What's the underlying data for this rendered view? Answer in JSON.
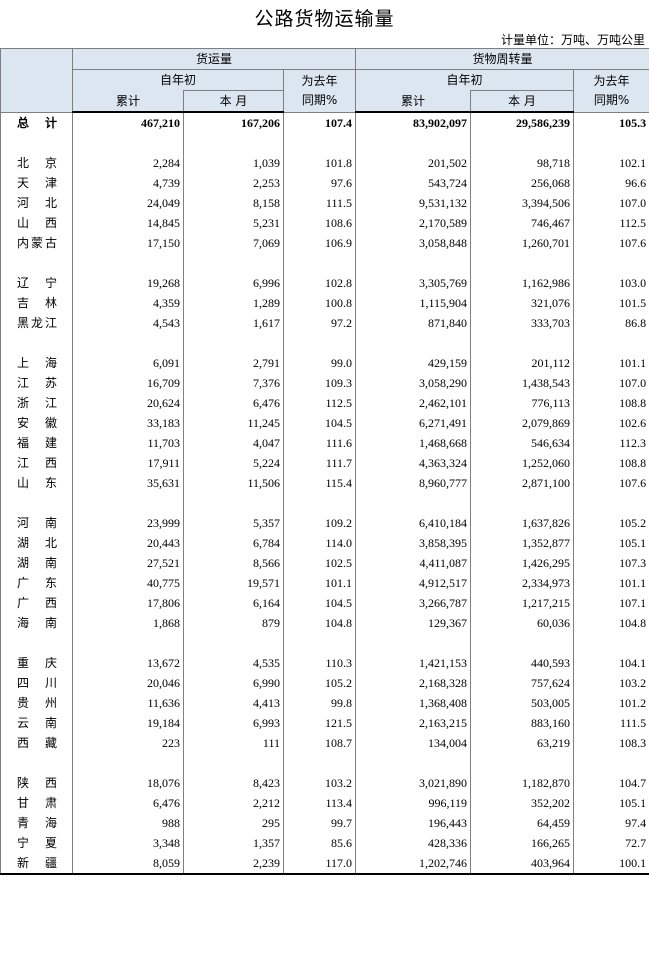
{
  "title": "公路货物运输量",
  "unit": "计量单位：万吨、万吨公里",
  "header": {
    "groups": [
      {
        "name": "货运量",
        "since_start": "自年初",
        "cumulative": "累计",
        "month": "本 月",
        "yoy": [
          "为去年",
          "同期%"
        ]
      },
      {
        "name": "货物周转量",
        "since_start": "自年初",
        "cumulative": "累计",
        "month": "本 月",
        "yoy": [
          "为去年",
          "同期%"
        ]
      }
    ]
  },
  "table": {
    "total": [
      "总 计",
      "467,210",
      "167,206",
      "107.4",
      "83,902,097",
      "29,586,239",
      "105.3"
    ],
    "groups": [
      [
        [
          "北 京",
          "2,284",
          "1,039",
          "101.8",
          "201,502",
          "98,718",
          "102.1"
        ],
        [
          "天 津",
          "4,739",
          "2,253",
          "97.6",
          "543,724",
          "256,068",
          "96.6"
        ],
        [
          "河 北",
          "24,049",
          "8,158",
          "111.5",
          "9,531,132",
          "3,394,506",
          "107.0"
        ],
        [
          "山 西",
          "14,845",
          "5,231",
          "108.6",
          "2,170,589",
          "746,467",
          "112.5"
        ],
        [
          "内蒙古",
          "17,150",
          "7,069",
          "106.9",
          "3,058,848",
          "1,260,701",
          "107.6"
        ]
      ],
      [
        [
          "辽 宁",
          "19,268",
          "6,996",
          "102.8",
          "3,305,769",
          "1,162,986",
          "103.0"
        ],
        [
          "吉 林",
          "4,359",
          "1,289",
          "100.8",
          "1,115,904",
          "321,076",
          "101.5"
        ],
        [
          "黑龙江",
          "4,543",
          "1,617",
          "97.2",
          "871,840",
          "333,703",
          "86.8"
        ]
      ],
      [
        [
          "上 海",
          "6,091",
          "2,791",
          "99.0",
          "429,159",
          "201,112",
          "101.1"
        ],
        [
          "江 苏",
          "16,709",
          "7,376",
          "109.3",
          "3,058,290",
          "1,438,543",
          "107.0"
        ],
        [
          "浙 江",
          "20,624",
          "6,476",
          "112.5",
          "2,462,101",
          "776,113",
          "108.8"
        ],
        [
          "安 徽",
          "33,183",
          "11,245",
          "104.5",
          "6,271,491",
          "2,079,869",
          "102.6"
        ],
        [
          "福 建",
          "11,703",
          "4,047",
          "111.6",
          "1,468,668",
          "546,634",
          "112.3"
        ],
        [
          "江 西",
          "17,911",
          "5,224",
          "111.7",
          "4,363,324",
          "1,252,060",
          "108.8"
        ],
        [
          "山 东",
          "35,631",
          "11,506",
          "115.4",
          "8,960,777",
          "2,871,100",
          "107.6"
        ]
      ],
      [
        [
          "河 南",
          "23,999",
          "5,357",
          "109.2",
          "6,410,184",
          "1,637,826",
          "105.2"
        ],
        [
          "湖 北",
          "20,443",
          "6,784",
          "114.0",
          "3,858,395",
          "1,352,877",
          "105.1"
        ],
        [
          "湖 南",
          "27,521",
          "8,566",
          "102.5",
          "4,411,087",
          "1,426,295",
          "107.3"
        ],
        [
          "广 东",
          "40,775",
          "19,571",
          "101.1",
          "4,912,517",
          "2,334,973",
          "101.1"
        ],
        [
          "广 西",
          "17,806",
          "6,164",
          "104.5",
          "3,266,787",
          "1,217,215",
          "107.1"
        ],
        [
          "海 南",
          "1,868",
          "879",
          "104.8",
          "129,367",
          "60,036",
          "104.8"
        ]
      ],
      [
        [
          "重 庆",
          "13,672",
          "4,535",
          "110.3",
          "1,421,153",
          "440,593",
          "104.1"
        ],
        [
          "四 川",
          "20,046",
          "6,990",
          "105.2",
          "2,168,328",
          "757,624",
          "103.2"
        ],
        [
          "贵 州",
          "11,636",
          "4,413",
          "99.8",
          "1,368,408",
          "503,005",
          "101.2"
        ],
        [
          "云 南",
          "19,184",
          "6,993",
          "121.5",
          "2,163,215",
          "883,160",
          "111.5"
        ],
        [
          "西 藏",
          "223",
          "111",
          "108.7",
          "134,004",
          "63,219",
          "108.3"
        ]
      ],
      [
        [
          "陕 西",
          "18,076",
          "8,423",
          "103.2",
          "3,021,890",
          "1,182,870",
          "104.7"
        ],
        [
          "甘 肃",
          "6,476",
          "2,212",
          "113.4",
          "996,119",
          "352,202",
          "105.1"
        ],
        [
          "青 海",
          "988",
          "295",
          "99.7",
          "196,443",
          "64,459",
          "97.4"
        ],
        [
          "宁 夏",
          "3,348",
          "1,357",
          "85.6",
          "428,336",
          "166,265",
          "72.7"
        ],
        [
          "新 疆",
          "8,059",
          "2,239",
          "117.0",
          "1,202,746",
          "403,964",
          "100.1"
        ]
      ]
    ]
  }
}
